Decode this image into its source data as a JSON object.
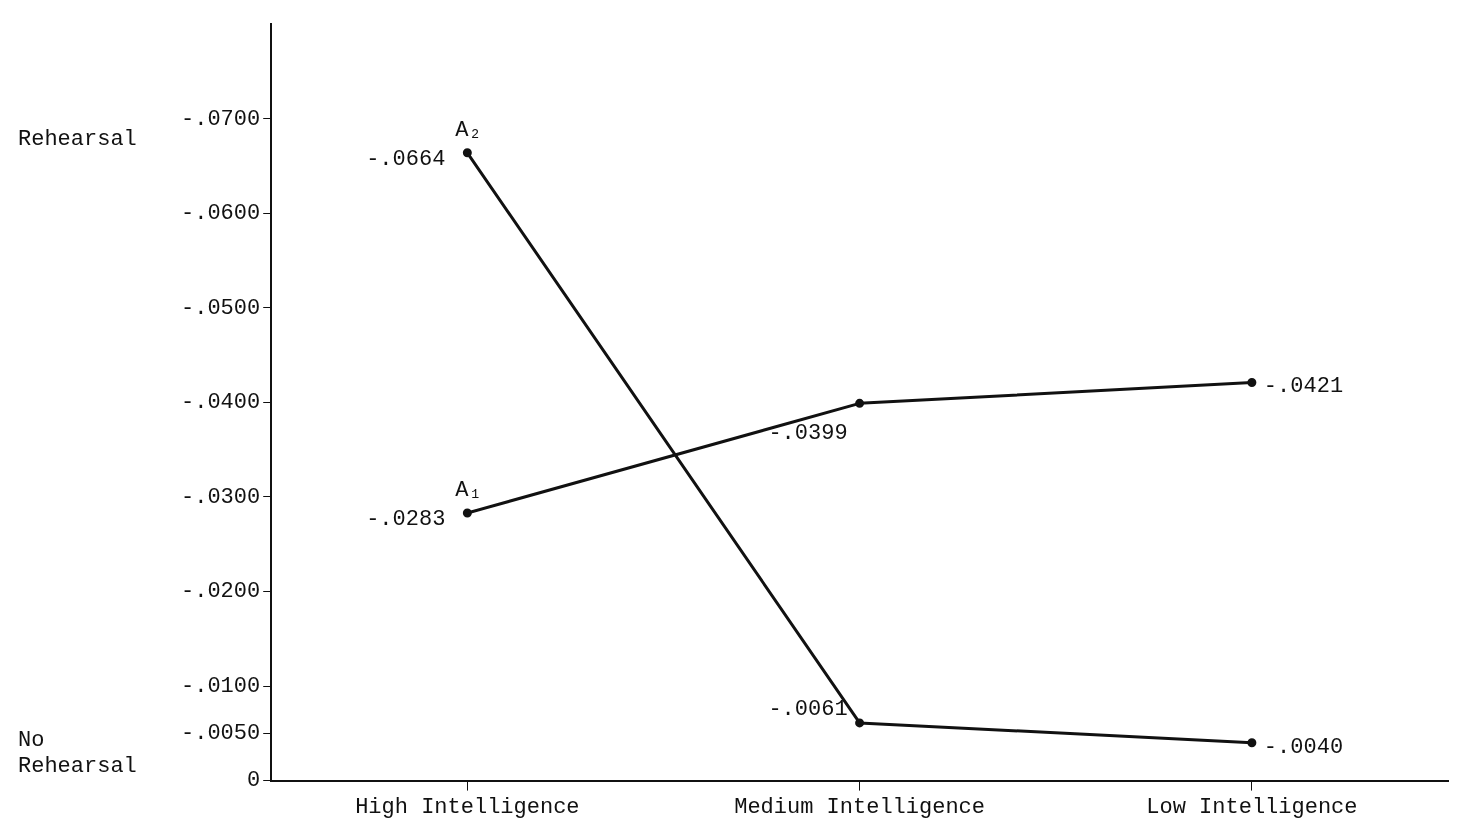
{
  "chart_data": {
    "type": "line",
    "categories": [
      "High Intelligence",
      "Medium Intelligence",
      "Low Intelligence"
    ],
    "series": [
      {
        "name": "A₁",
        "color": "#111111",
        "values": [
          -0.0283,
          -0.0399,
          -0.0421
        ],
        "value_labels": [
          "-.0283",
          "-.0399",
          "-.0421"
        ]
      },
      {
        "name": "A₂",
        "color": "#111111",
        "values": [
          -0.0664,
          -0.0061,
          -0.004
        ],
        "value_labels": [
          "-.0664",
          "-.0061",
          "-.0040"
        ]
      }
    ],
    "ylim": [
      0,
      -0.08
    ],
    "yticks": [
      {
        "value": 0,
        "label": "0"
      },
      {
        "value": -0.005,
        "label": "-.0050"
      },
      {
        "value": -0.01,
        "label": "-.0100"
      },
      {
        "value": -0.02,
        "label": "-.0200"
      },
      {
        "value": -0.03,
        "label": "-.0300"
      },
      {
        "value": -0.04,
        "label": "-.0400"
      },
      {
        "value": -0.05,
        "label": "-.0500"
      },
      {
        "value": -0.06,
        "label": "-.0600"
      },
      {
        "value": -0.07,
        "label": "-.0700"
      }
    ],
    "annotations": [
      "Rehearsal",
      "No Rehearsal"
    ],
    "grid": false,
    "legend": false,
    "marker": "circle",
    "line_style": "solid"
  }
}
